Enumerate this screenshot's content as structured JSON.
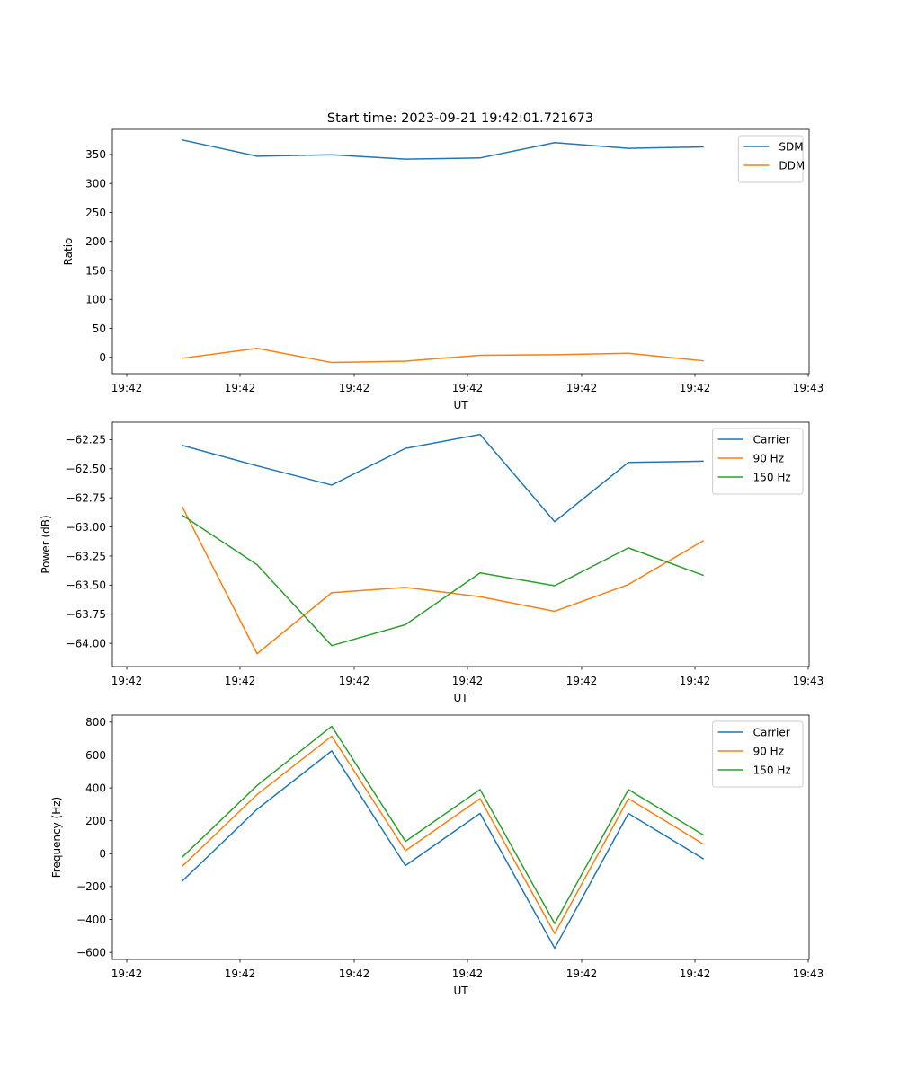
{
  "figure": {
    "title": "Start time: 2023-09-21 19:42:01.721673"
  },
  "chart_data": [
    {
      "type": "line",
      "title": "Start time: 2023-09-21 19:42:01.721673",
      "xlabel": "UT",
      "ylabel": "Ratio",
      "x_tick_labels": [
        "19:42",
        "19:42",
        "19:42",
        "19:42",
        "19:42",
        "19:42",
        "19:43"
      ],
      "y_ticks": [
        0,
        50,
        100,
        150,
        200,
        250,
        300,
        350
      ],
      "y_tick_labels": [
        "0",
        "50",
        "100",
        "150",
        "200",
        "250",
        "300",
        "350"
      ],
      "ylim": [
        -28.3,
        393.3
      ],
      "legend_position": "top-right",
      "series": [
        {
          "name": "SDM",
          "color": "#1f77b4",
          "values": [
            375,
            347,
            349.5,
            342,
            344,
            370.5,
            360.5,
            363
          ]
        },
        {
          "name": "DDM",
          "color": "#ff7f0e",
          "values": [
            -1.5,
            15.5,
            -9,
            -6.5,
            3.5,
            4.5,
            7,
            -6
          ]
        }
      ]
    },
    {
      "type": "line",
      "title": "",
      "xlabel": "UT",
      "ylabel": "Power (dB)",
      "x_tick_labels": [
        "19:42",
        "19:42",
        "19:42",
        "19:42",
        "19:42",
        "19:42",
        "19:43"
      ],
      "y_ticks": [
        -62.25,
        -62.5,
        -62.75,
        -63.0,
        -63.25,
        -63.5,
        -63.75,
        -64.0
      ],
      "y_tick_labels": [
        "−62.25",
        "−62.50",
        "−62.75",
        "−63.00",
        "−63.25",
        "−63.50",
        "−63.75",
        "−64.00"
      ],
      "ylim": [
        -64.2,
        -62.1
      ],
      "legend_position": "top-right",
      "series": [
        {
          "name": "Carrier",
          "color": "#1f77b4",
          "values": [
            -62.3,
            -62.475,
            -62.64,
            -62.325,
            -62.205,
            -62.955,
            -62.445,
            -62.435
          ]
        },
        {
          "name": "90 Hz",
          "color": "#ff7f0e",
          "values": [
            -62.83,
            -64.09,
            -63.565,
            -63.52,
            -63.6,
            -63.725,
            -63.495,
            -63.12
          ]
        },
        {
          "name": "150 Hz",
          "color": "#2ca02c",
          "values": [
            -62.9,
            -63.325,
            -64.02,
            -63.84,
            -63.395,
            -63.505,
            -63.18,
            -63.415
          ]
        }
      ]
    },
    {
      "type": "line",
      "title": "",
      "xlabel": "UT",
      "ylabel": "Frequency (Hz)",
      "x_tick_labels": [
        "19:42",
        "19:42",
        "19:42",
        "19:42",
        "19:42",
        "19:42",
        "19:43"
      ],
      "y_ticks": [
        800,
        600,
        400,
        200,
        0,
        -200,
        -400,
        -600
      ],
      "y_tick_labels": [
        "800",
        "600",
        "400",
        "200",
        "0",
        "−200",
        "−400",
        "−600"
      ],
      "ylim": [
        -643,
        843
      ],
      "legend_position": "top-right",
      "series": [
        {
          "name": "Carrier",
          "color": "#1f77b4",
          "values": [
            -165,
            270,
            625,
            -72,
            245,
            -575,
            245,
            -30
          ]
        },
        {
          "name": "90 Hz",
          "color": "#ff7f0e",
          "values": [
            -75,
            360,
            715,
            18,
            335,
            -485,
            335,
            60
          ]
        },
        {
          "name": "150 Hz",
          "color": "#2ca02c",
          "values": [
            -20,
            415,
            775,
            75,
            390,
            -425,
            390,
            115
          ]
        }
      ]
    }
  ]
}
